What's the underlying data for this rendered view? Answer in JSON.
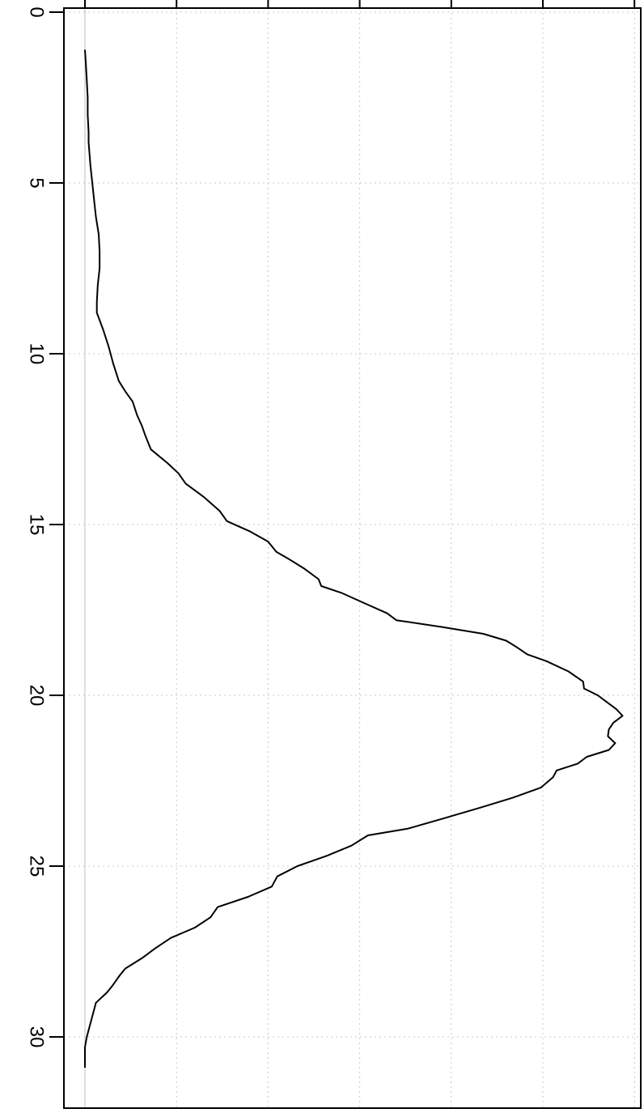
{
  "chart_data": {
    "type": "line",
    "orientation": "rotated",
    "title": "",
    "xlabel": "",
    "ylabel": "",
    "x_ticks": [
      0,
      5,
      10,
      15,
      20,
      25,
      30
    ],
    "x_tick_labels": [
      "0",
      "5",
      "10",
      "15",
      "20",
      "25",
      "30"
    ],
    "xlim": [
      0,
      32.4
    ],
    "ylim": [
      0,
      6
    ],
    "grid": true,
    "legend": "none",
    "colors": {
      "line": "#000000",
      "baseline": "#bdbdbd",
      "grid": "#c8c8c8",
      "axis": "#000000"
    },
    "series": [
      {
        "x": [
          1.1,
          1.5,
          2,
          2.5,
          3,
          3.5,
          3.8,
          4.5,
          5,
          5.5,
          6,
          6.5,
          7,
          7.5,
          8,
          8.5,
          8.8,
          9.3,
          9.8,
          10.3,
          10.8,
          11.1,
          11.4,
          11.8,
          12.1,
          12.4,
          12.8,
          13.2,
          13.5,
          13.8,
          14.2,
          14.6,
          14.9,
          15.2,
          15.5,
          15.8,
          16,
          16.3,
          16.6,
          16.8,
          17,
          17.3,
          17.6,
          17.8,
          18,
          18.2,
          18.4,
          18.6,
          18.8,
          19,
          19.3,
          19.6,
          19.8,
          20,
          20.2,
          20.4,
          20.6,
          20.8,
          21,
          21.2,
          21.4,
          21.6,
          21.8,
          22,
          22.2,
          22.4,
          22.7,
          23,
          23.3,
          23.6,
          23.9,
          24.1,
          24.4,
          24.7,
          25,
          25.3,
          25.6,
          25.9,
          26.2,
          26.5,
          26.8,
          27.1,
          27.4,
          27.7,
          28,
          28.2,
          28.5,
          28.7,
          29,
          29.3,
          29.6,
          30,
          30.3,
          30.9
        ],
        "y": [
          0,
          0.01,
          0.02,
          0.03,
          0.03,
          0.04,
          0.04,
          0.06,
          0.08,
          0.1,
          0.12,
          0.15,
          0.16,
          0.16,
          0.14,
          0.13,
          0.13,
          0.2,
          0.26,
          0.31,
          0.37,
          0.44,
          0.52,
          0.57,
          0.62,
          0.66,
          0.72,
          0.9,
          1.02,
          1.1,
          1.3,
          1.47,
          1.55,
          1.8,
          2,
          2.09,
          2.22,
          2.4,
          2.55,
          2.58,
          2.8,
          3.05,
          3.3,
          3.4,
          3.9,
          4.35,
          4.6,
          4.72,
          4.83,
          5.04,
          5.28,
          5.44,
          5.45,
          5.6,
          5.7,
          5.8,
          5.87,
          5.77,
          5.72,
          5.71,
          5.79,
          5.72,
          5.48,
          5.38,
          5.15,
          5.11,
          4.98,
          4.67,
          4.3,
          3.92,
          3.53,
          3.09,
          2.91,
          2.64,
          2.32,
          2.1,
          2.04,
          1.78,
          1.45,
          1.37,
          1.2,
          0.94,
          0.77,
          0.62,
          0.44,
          0.38,
          0.3,
          0.24,
          0.12,
          0.09,
          0.06,
          0.02,
          0,
          0
        ]
      }
    ]
  }
}
